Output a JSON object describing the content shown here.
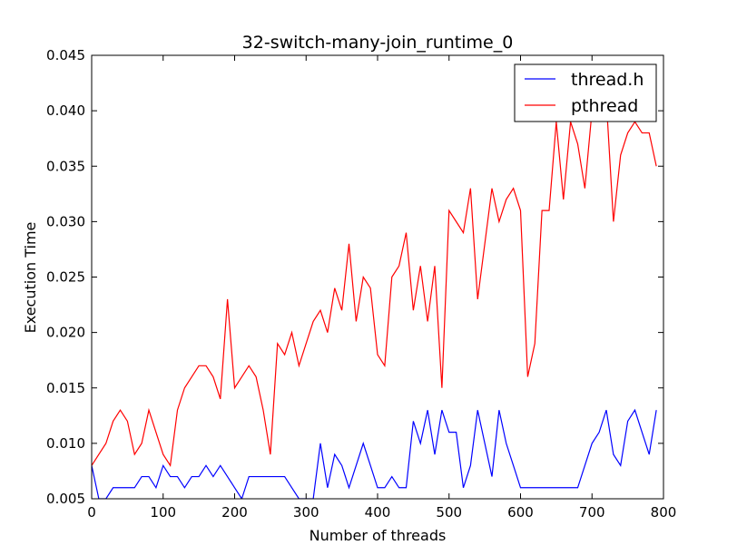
{
  "chart_data": {
    "type": "line",
    "title": "32-switch-many-join_runtime_0",
    "xlabel": "Number of threads",
    "ylabel": "Execution Time",
    "xlim": [
      0,
      800
    ],
    "ylim": [
      0.005,
      0.045
    ],
    "xticks": [
      0,
      100,
      200,
      300,
      400,
      500,
      600,
      700,
      800
    ],
    "xtick_labels": [
      "0",
      "100",
      "200",
      "300",
      "400",
      "500",
      "600",
      "700",
      "800"
    ],
    "yticks": [
      0.005,
      0.01,
      0.015,
      0.02,
      0.025,
      0.03,
      0.035,
      0.04,
      0.045
    ],
    "ytick_labels": [
      "0.005",
      "0.010",
      "0.015",
      "0.020",
      "0.025",
      "0.030",
      "0.035",
      "0.040",
      "0.045"
    ],
    "grid": false,
    "legend_position": "top-right",
    "x": [
      0,
      10,
      20,
      30,
      40,
      50,
      60,
      70,
      80,
      90,
      100,
      110,
      120,
      130,
      140,
      150,
      160,
      170,
      180,
      190,
      200,
      210,
      220,
      230,
      240,
      250,
      260,
      270,
      280,
      290,
      300,
      310,
      320,
      330,
      340,
      350,
      360,
      370,
      380,
      390,
      400,
      410,
      420,
      430,
      440,
      450,
      460,
      470,
      480,
      490,
      500,
      510,
      520,
      530,
      540,
      550,
      560,
      570,
      580,
      590,
      600,
      610,
      620,
      630,
      640,
      650,
      660,
      670,
      680,
      690,
      700,
      710,
      720,
      730,
      740,
      750,
      760,
      770,
      780,
      790
    ],
    "series": [
      {
        "name": "thread.h",
        "color": "#0000ff",
        "values": [
          0.008,
          0.005,
          0.005,
          0.006,
          0.006,
          0.006,
          0.006,
          0.007,
          0.007,
          0.006,
          0.008,
          0.007,
          0.007,
          0.006,
          0.007,
          0.007,
          0.008,
          0.007,
          0.008,
          0.007,
          0.006,
          0.005,
          0.007,
          0.007,
          0.007,
          0.007,
          0.007,
          0.007,
          0.006,
          0.005,
          0.005,
          0.005,
          0.01,
          0.006,
          0.009,
          0.008,
          0.006,
          0.008,
          0.01,
          0.008,
          0.006,
          0.006,
          0.007,
          0.006,
          0.006,
          0.012,
          0.01,
          0.013,
          0.009,
          0.013,
          0.011,
          0.011,
          0.006,
          0.008,
          0.013,
          0.01,
          0.007,
          0.013,
          0.01,
          0.008,
          0.006,
          0.006,
          0.006,
          0.006,
          0.006,
          0.006,
          0.006,
          0.006,
          0.006,
          0.008,
          0.01,
          0.011,
          0.013,
          0.009,
          0.008,
          0.012,
          0.013,
          0.011,
          0.009,
          0.013
        ]
      },
      {
        "name": "pthread",
        "color": "#ff0000",
        "values": [
          0.008,
          0.009,
          0.01,
          0.012,
          0.013,
          0.012,
          0.009,
          0.01,
          0.013,
          0.011,
          0.009,
          0.008,
          0.013,
          0.015,
          0.016,
          0.017,
          0.017,
          0.016,
          0.014,
          0.023,
          0.015,
          0.016,
          0.017,
          0.016,
          0.013,
          0.009,
          0.019,
          0.018,
          0.02,
          0.017,
          0.019,
          0.021,
          0.022,
          0.02,
          0.024,
          0.022,
          0.028,
          0.021,
          0.025,
          0.024,
          0.018,
          0.017,
          0.025,
          0.026,
          0.029,
          0.022,
          0.026,
          0.021,
          0.026,
          0.015,
          0.031,
          0.03,
          0.029,
          0.033,
          0.023,
          0.028,
          0.033,
          0.03,
          0.032,
          0.033,
          0.031,
          0.016,
          0.019,
          0.031,
          0.031,
          0.039,
          0.032,
          0.039,
          0.037,
          0.033,
          0.04,
          0.04,
          0.041,
          0.03,
          0.036,
          0.038,
          0.039,
          0.038,
          0.038,
          0.035
        ]
      }
    ]
  }
}
